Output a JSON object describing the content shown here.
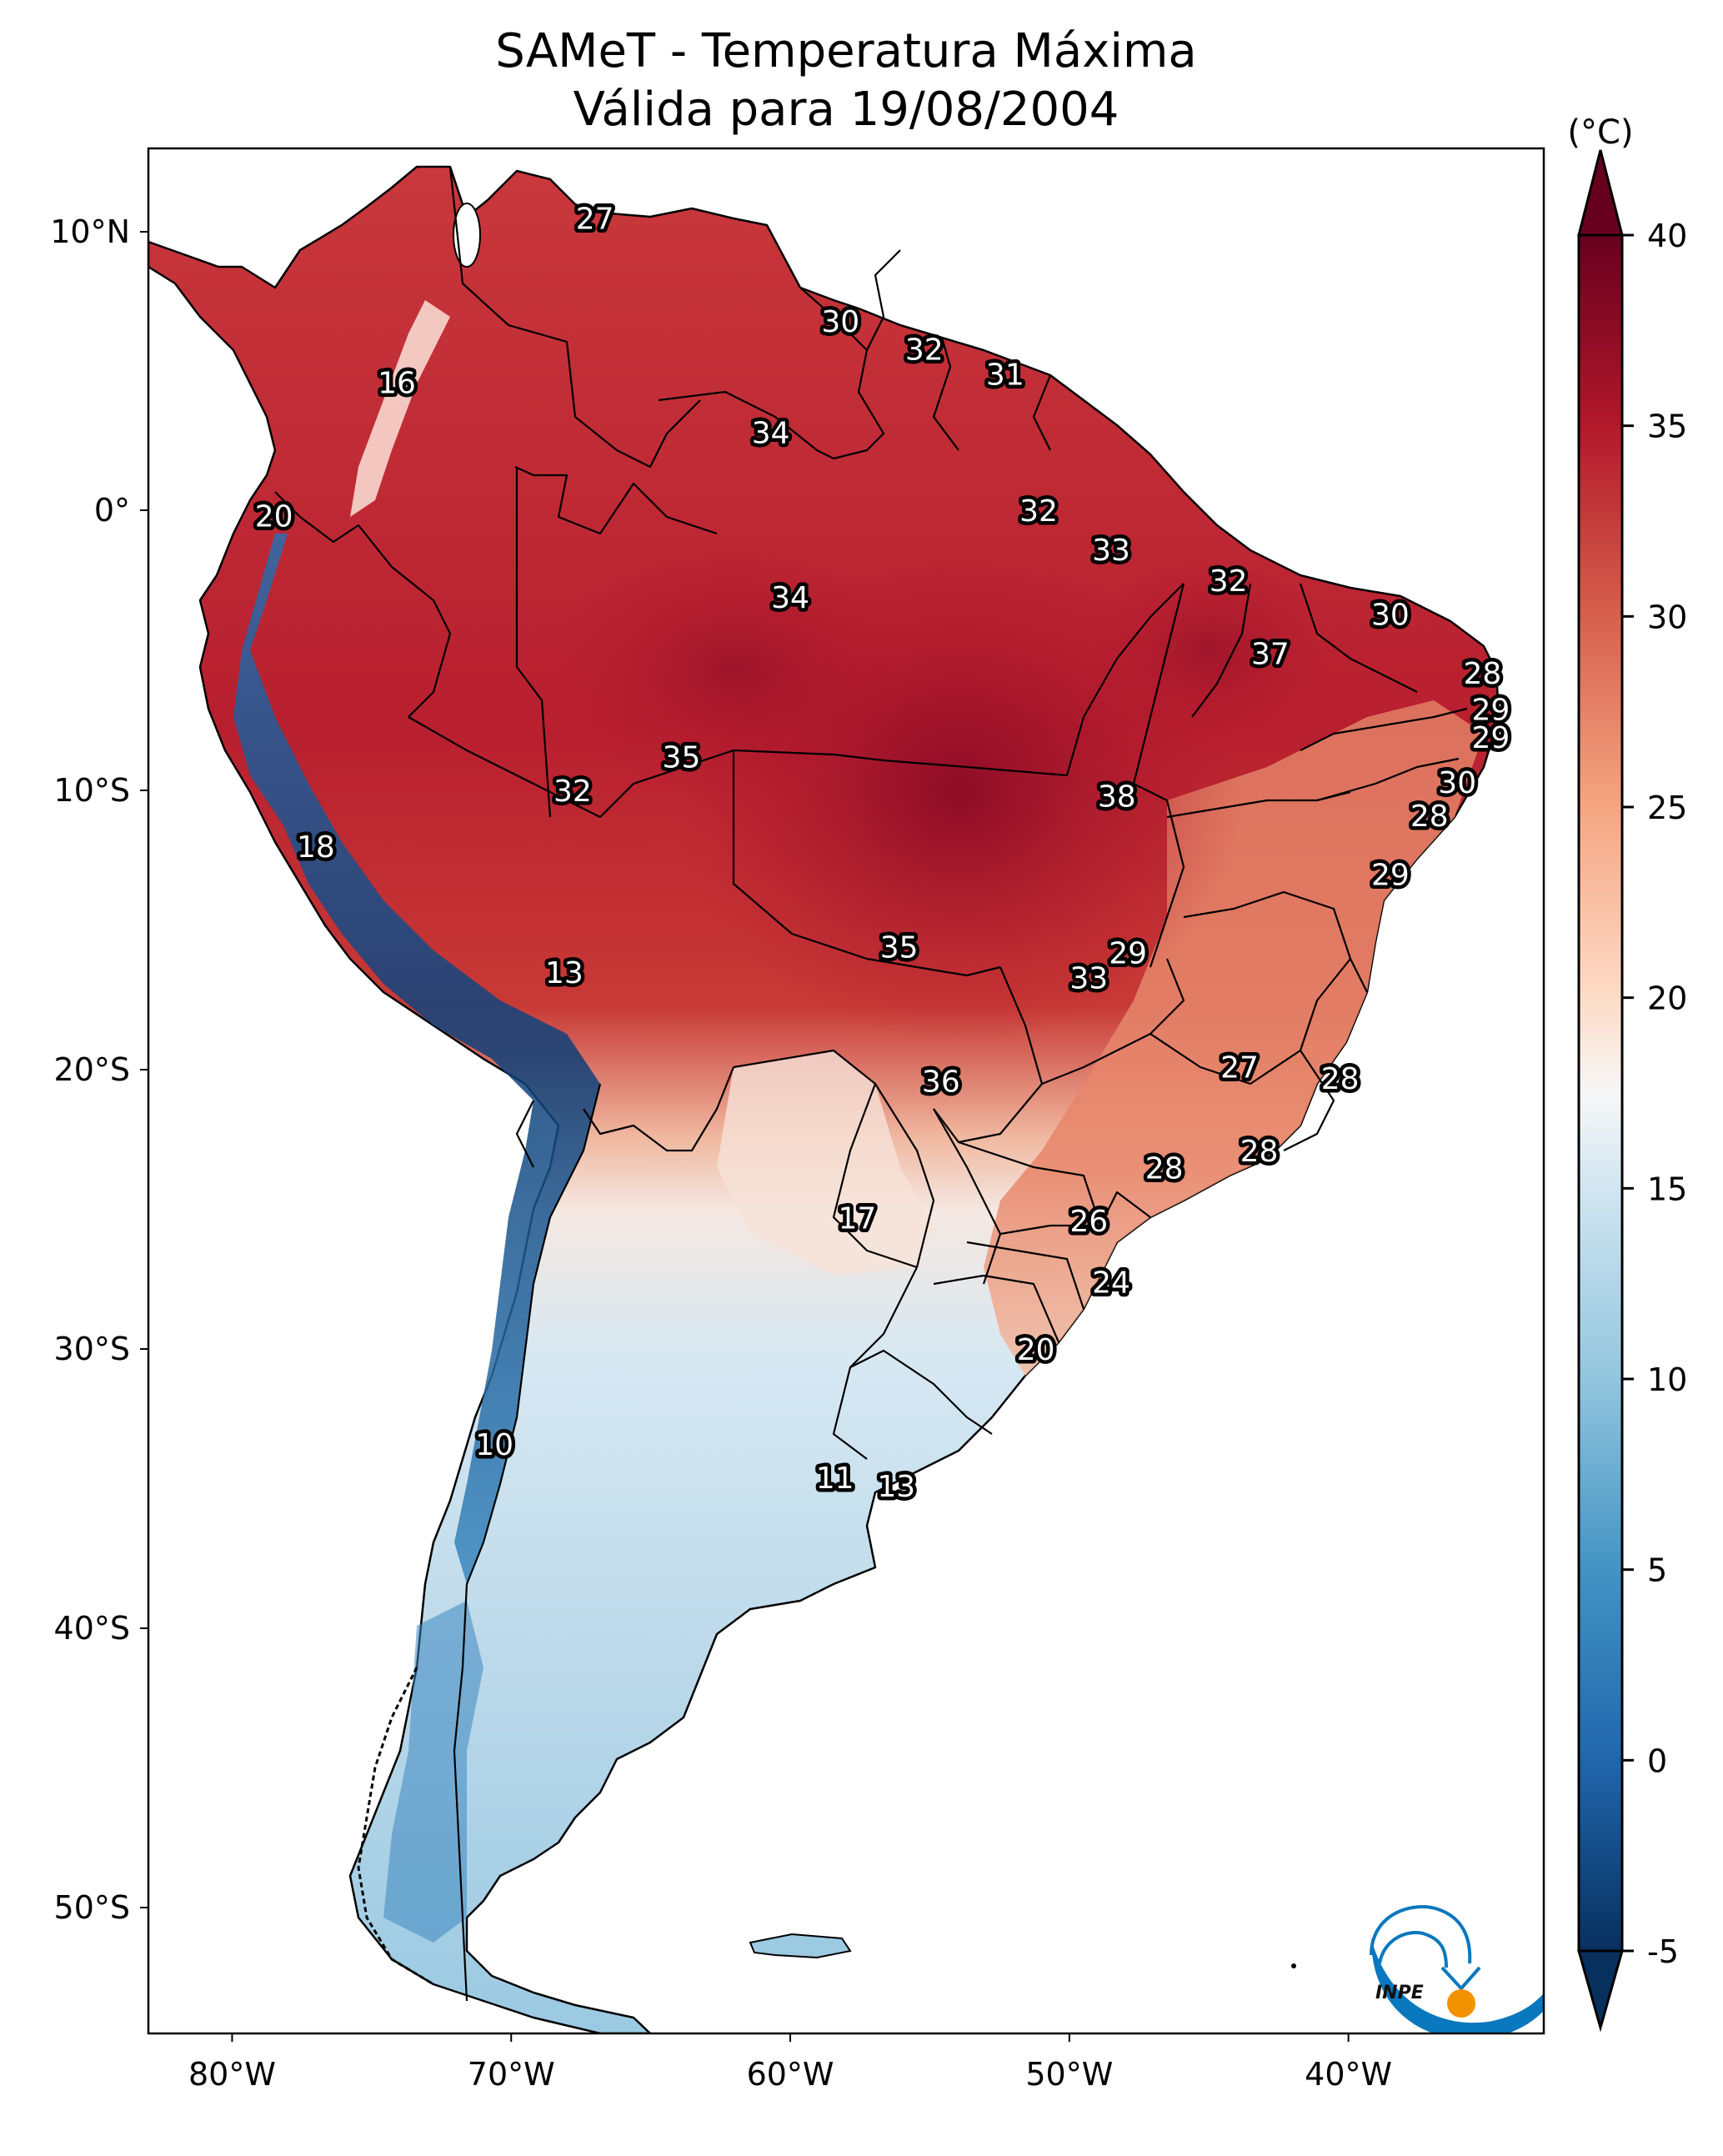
{
  "title": {
    "line1": "SAMeT - Temperatura Máxima",
    "line2": "Válida para 19/08/2004"
  },
  "colorbar": {
    "unit": "(°C)",
    "ticks": [
      "40",
      "35",
      "30",
      "25",
      "20",
      "15",
      "10",
      "5",
      "0",
      "-5"
    ],
    "extend": "both",
    "colormap": "RdBu_r",
    "colors": {
      "low_extend": "#053061",
      "m5": "#08305e",
      "m2": "#1e5c9c",
      "p0": "#2166ac",
      "p5": "#4393c3",
      "p10": "#92c5de",
      "p15": "#d1e5f0",
      "p17": "#f7f7f7",
      "p20": "#fddbc7",
      "p25": "#f4a582",
      "p30": "#d6604d",
      "p35": "#b2182b",
      "p40": "#67001f",
      "high_extend": "#67001f"
    }
  },
  "logo": {
    "text": "INPE",
    "blue": "#0a78bf",
    "orange": "#f39200"
  },
  "chart_data": {
    "type": "heatmap",
    "title": "SAMeT - Temperatura Máxima\nVálida para 19/08/2004",
    "xlabel": "",
    "ylabel": "",
    "x_ticks": [
      "80°W",
      "70°W",
      "60°W",
      "50°W",
      "40°W"
    ],
    "x_tick_values": [
      -80,
      -70,
      -60,
      -50,
      -40
    ],
    "y_ticks": [
      "10°N",
      "0°",
      "10°S",
      "20°S",
      "30°S",
      "40°S",
      "50°S"
    ],
    "y_tick_values": [
      10,
      0,
      -10,
      -20,
      -30,
      -40,
      -50
    ],
    "xlim": [
      -83,
      -33
    ],
    "ylim": [
      -56,
      13
    ],
    "value_range": [
      -5,
      40
    ],
    "units": "°C",
    "grid": false,
    "legend": "colorbar-right",
    "points": [
      {
        "label": "27",
        "value": 27,
        "lon": -67.0,
        "lat": 10.5
      },
      {
        "label": "16",
        "value": 16,
        "lon": -74.1,
        "lat": 4.6
      },
      {
        "label": "30",
        "value": 30,
        "lon": -58.2,
        "lat": 6.8
      },
      {
        "label": "32",
        "value": 32,
        "lon": -55.2,
        "lat": 5.8
      },
      {
        "label": "31",
        "value": 31,
        "lon": -52.3,
        "lat": 4.9
      },
      {
        "label": "34",
        "value": 34,
        "lon": -60.7,
        "lat": 2.8
      },
      {
        "label": "20",
        "value": 20,
        "lon": -78.5,
        "lat": -0.2
      },
      {
        "label": "32",
        "value": 32,
        "lon": -51.1,
        "lat": 0.0
      },
      {
        "label": "33",
        "value": 33,
        "lon": -48.5,
        "lat": -1.4
      },
      {
        "label": "32",
        "value": 32,
        "lon": -44.3,
        "lat": -2.5
      },
      {
        "label": "30",
        "value": 30,
        "lon": -38.5,
        "lat": -3.7
      },
      {
        "label": "34",
        "value": 34,
        "lon": -60.0,
        "lat": -3.1
      },
      {
        "label": "37",
        "value": 37,
        "lon": -42.8,
        "lat": -5.1
      },
      {
        "label": "28",
        "value": 28,
        "lon": -35.2,
        "lat": -5.8
      },
      {
        "label": "29",
        "value": 29,
        "lon": -34.9,
        "lat": -7.1
      },
      {
        "label": "29",
        "value": 29,
        "lon": -34.9,
        "lat": -8.1
      },
      {
        "label": "35",
        "value": 35,
        "lon": -63.9,
        "lat": -8.8
      },
      {
        "label": "32",
        "value": 32,
        "lon": -67.8,
        "lat": -10.0
      },
      {
        "label": "38",
        "value": 38,
        "lon": -48.3,
        "lat": -10.2
      },
      {
        "label": "30",
        "value": 30,
        "lon": -36.1,
        "lat": -9.7
      },
      {
        "label": "28",
        "value": 28,
        "lon": -37.1,
        "lat": -10.9
      },
      {
        "label": "18",
        "value": 18,
        "lon": -77.0,
        "lat": -12.0
      },
      {
        "label": "29",
        "value": 29,
        "lon": -38.5,
        "lat": -13.0
      },
      {
        "label": "35",
        "value": 35,
        "lon": -56.1,
        "lat": -15.6
      },
      {
        "label": "29",
        "value": 29,
        "lon": -47.9,
        "lat": -15.8
      },
      {
        "label": "33",
        "value": 33,
        "lon": -49.3,
        "lat": -16.7
      },
      {
        "label": "13",
        "value": 13,
        "lon": -68.1,
        "lat": -16.5
      },
      {
        "label": "27",
        "value": 27,
        "lon": -43.9,
        "lat": -19.9
      },
      {
        "label": "28",
        "value": 28,
        "lon": -40.3,
        "lat": -20.3
      },
      {
        "label": "36",
        "value": 36,
        "lon": -54.6,
        "lat": -20.4
      },
      {
        "label": "28",
        "value": 28,
        "lon": -46.6,
        "lat": -23.5
      },
      {
        "label": "28",
        "value": 28,
        "lon": -43.2,
        "lat": -22.9
      },
      {
        "label": "17",
        "value": 17,
        "lon": -57.6,
        "lat": -25.3
      },
      {
        "label": "26",
        "value": 26,
        "lon": -49.3,
        "lat": -25.4
      },
      {
        "label": "24",
        "value": 24,
        "lon": -48.5,
        "lat": -27.6
      },
      {
        "label": "20",
        "value": 20,
        "lon": -51.2,
        "lat": -30.0
      },
      {
        "label": "10",
        "value": 10,
        "lon": -70.6,
        "lat": -33.4
      },
      {
        "label": "11",
        "value": 11,
        "lon": -58.4,
        "lat": -34.6
      },
      {
        "label": "13",
        "value": 13,
        "lon": -56.2,
        "lat": -34.9
      }
    ]
  }
}
